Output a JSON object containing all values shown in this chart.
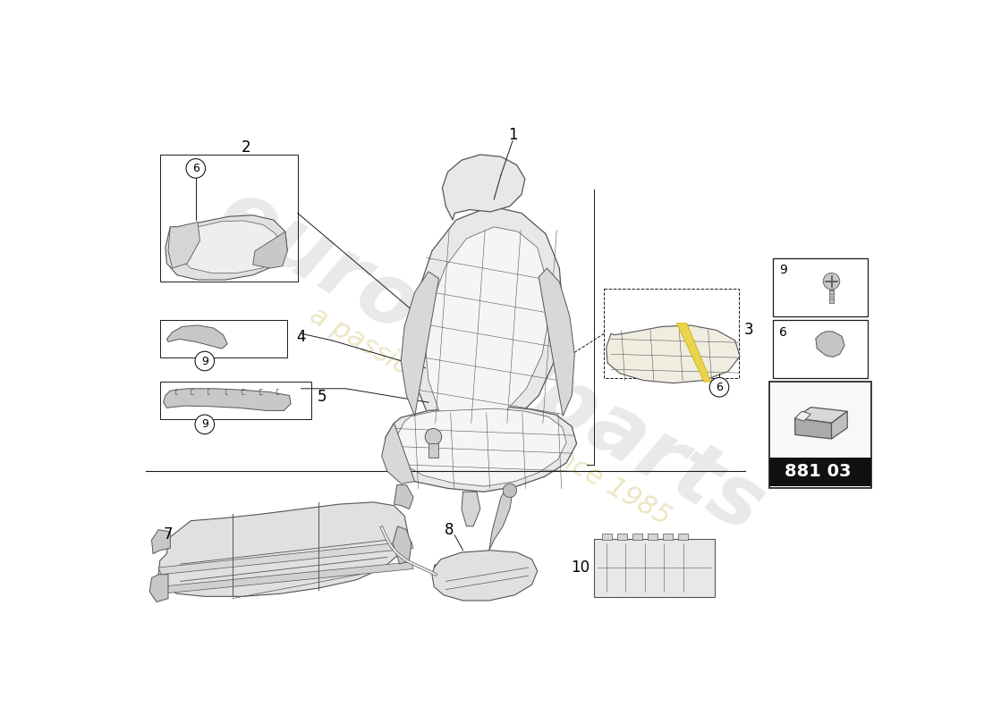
{
  "background_color": "#ffffff",
  "line_color": "#1a1a1a",
  "part_number": "881 03",
  "watermark1": "eurocarparts",
  "watermark2": "a passion for parts since 1985",
  "wm_color1": "#c0c0c0",
  "wm_color2": "#d4c878",
  "seat_fill": "#e8e8e8",
  "seat_line": "#555555",
  "part_fill": "#e0e0e0",
  "legend_box_color": "#111111",
  "legend_text_color": "#ffffff"
}
